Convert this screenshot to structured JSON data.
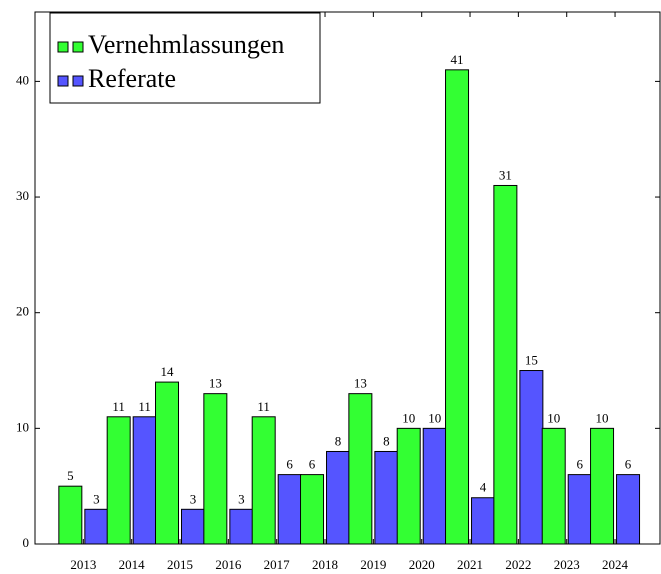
{
  "chart_data": {
    "type": "bar",
    "categories": [
      "2013",
      "2014",
      "2015",
      "2016",
      "2017",
      "2018",
      "2019",
      "2020",
      "2021",
      "2022",
      "2023",
      "2024"
    ],
    "series": [
      {
        "name": "Vernehmlassungen",
        "color": "#33ff33",
        "values": [
          5,
          11,
          14,
          13,
          11,
          6,
          13,
          10,
          41,
          31,
          10,
          10
        ]
      },
      {
        "name": "Referate",
        "color": "#5555ff",
        "values": [
          3,
          11,
          3,
          3,
          6,
          8,
          8,
          10,
          4,
          15,
          6,
          6
        ]
      }
    ],
    "ylim": [
      0,
      46
    ],
    "yticks": [
      0,
      10,
      20,
      30,
      40
    ],
    "legend": "upper left"
  }
}
